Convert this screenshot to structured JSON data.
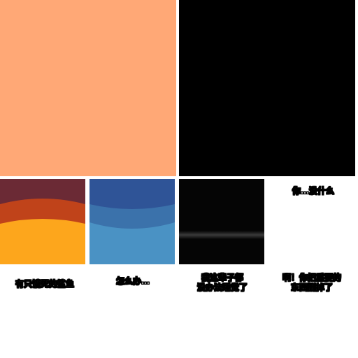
{
  "colors": {
    "orange_panel": "#ffa876",
    "black_panel": "#000000",
    "sunset_top": "#6b2a35",
    "sunset_mid": "#c0431a",
    "sunset_bottom": "#fda61c",
    "sea_top": "#2f5497",
    "sea_mid": "#3b72ab",
    "sea_bottom": "#4a92c4",
    "dark_panel": "#050505"
  },
  "captions": {
    "top_right": "你…没什么",
    "panel_1": "有只饿死的鲨鱼",
    "panel_2": "怎么办…",
    "panel_3_line1": "我这辈子都",
    "panel_3_line2": "没办法睡觉了",
    "panel_4_line1": "啊！你把重要的",
    "panel_4_line2": "东西删掉了"
  }
}
